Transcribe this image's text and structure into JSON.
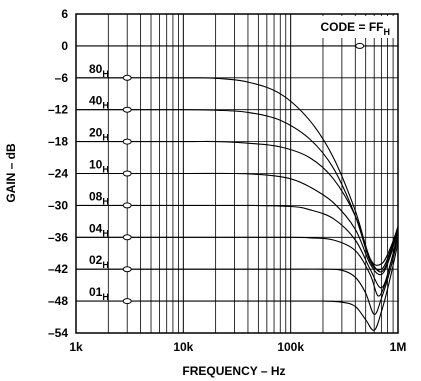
{
  "chart_data": {
    "type": "line",
    "xlabel": "FREQUENCY – Hz",
    "ylabel": "GAIN – dB",
    "xscale": "log",
    "xlim": [
      1000,
      1000000
    ],
    "ylim": [
      -54,
      6
    ],
    "x_ticks": [
      {
        "value": 1000,
        "label": "1k"
      },
      {
        "value": 10000,
        "label": "10k"
      },
      {
        "value": 100000,
        "label": "100k"
      },
      {
        "value": 1000000,
        "label": "1M"
      }
    ],
    "y_ticks": [
      {
        "value": 6,
        "label": "6"
      },
      {
        "value": 0,
        "label": "0"
      },
      {
        "value": -6,
        "label": "–6"
      },
      {
        "value": -12,
        "label": "–12"
      },
      {
        "value": -18,
        "label": "–18"
      },
      {
        "value": -24,
        "label": "–24"
      },
      {
        "value": -30,
        "label": "–30"
      },
      {
        "value": -36,
        "label": "–36"
      },
      {
        "value": -42,
        "label": "–42"
      },
      {
        "value": -48,
        "label": "–48"
      },
      {
        "value": -54,
        "label": "–54"
      }
    ],
    "grid": true,
    "annotation": {
      "text": "CODE = FF",
      "sub": "H"
    },
    "series": [
      {
        "name": "80",
        "sub": "H",
        "x": [
          1000,
          10000,
          20000,
          40000,
          80000,
          150000,
          250000,
          400000,
          550000,
          700000,
          850000,
          1000000
        ],
        "y": [
          -6,
          -6,
          -6.1,
          -6.8,
          -9,
          -14,
          -21,
          -31,
          -40,
          -41,
          -38,
          -34
        ]
      },
      {
        "name": "40",
        "sub": "H",
        "x": [
          1000,
          10000,
          20000,
          40000,
          80000,
          150000,
          250000,
          400000,
          550000,
          700000,
          850000,
          1000000
        ],
        "y": [
          -12,
          -12,
          -12.1,
          -12.5,
          -14,
          -17.5,
          -23,
          -32,
          -40.5,
          -42,
          -38.5,
          -34
        ]
      },
      {
        "name": "20",
        "sub": "H",
        "x": [
          1000,
          10000,
          20000,
          40000,
          80000,
          150000,
          250000,
          400000,
          550000,
          700000,
          850000,
          1000000
        ],
        "y": [
          -18,
          -18,
          -18,
          -18.3,
          -19,
          -21,
          -25,
          -32,
          -40,
          -42.5,
          -39,
          -34
        ]
      },
      {
        "name": "10",
        "sub": "H",
        "x": [
          1000,
          10000,
          30000,
          60000,
          100000,
          150000,
          250000,
          400000,
          550000,
          700000,
          850000,
          1000000
        ],
        "y": [
          -24,
          -24,
          -24,
          -24.3,
          -25,
          -26.5,
          -29.5,
          -34.5,
          -41,
          -43,
          -39.5,
          -34.5
        ]
      },
      {
        "name": "08",
        "sub": "H",
        "x": [
          1000,
          10000,
          40000,
          100000,
          150000,
          250000,
          400000,
          550000,
          700000,
          850000,
          1000000
        ],
        "y": [
          -30,
          -30,
          -30,
          -30.2,
          -30.8,
          -32.5,
          -36.5,
          -42,
          -45.5,
          -41,
          -35
        ]
      },
      {
        "name": "04",
        "sub": "H",
        "x": [
          1000,
          10000,
          100000,
          150000,
          250000,
          400000,
          550000,
          650000,
          750000,
          850000,
          1000000
        ],
        "y": [
          -36,
          -36,
          -36,
          -36.1,
          -36.5,
          -38.5,
          -43,
          -47,
          -45,
          -41,
          -36
        ]
      },
      {
        "name": "02",
        "sub": "H",
        "x": [
          1000,
          10000,
          100000,
          200000,
          300000,
          400000,
          500000,
          600000,
          700000,
          850000,
          1000000
        ],
        "y": [
          -42,
          -42,
          -42,
          -42,
          -42.2,
          -43.5,
          -46.5,
          -50.5,
          -47.5,
          -42,
          -36
        ]
      },
      {
        "name": "01",
        "sub": "H",
        "x": [
          1000,
          10000,
          100000,
          200000,
          300000,
          400000,
          500000,
          600000,
          700000,
          850000,
          1000000
        ],
        "y": [
          -48,
          -48,
          -48,
          -48,
          -48.2,
          -49,
          -51.5,
          -53.5,
          -50,
          -43.5,
          -37
        ]
      }
    ]
  }
}
